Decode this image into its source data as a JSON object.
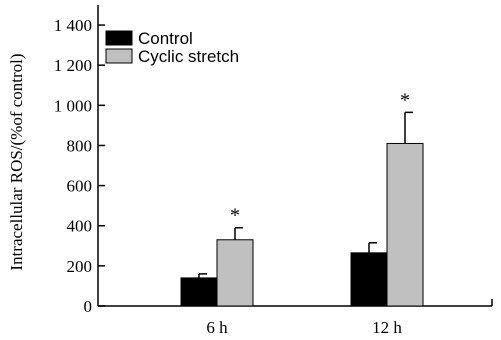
{
  "chart_data": {
    "type": "bar",
    "ylabel": "Intracellular ROS/(%of control)",
    "xlabel": "",
    "ylim": [
      0,
      1500
    ],
    "yticks": [
      0,
      200,
      400,
      600,
      800,
      1000,
      1200,
      1400
    ],
    "yticklabels": [
      "0",
      "200",
      "400",
      "600",
      "800",
      "1 000",
      "1 200",
      "1 400"
    ],
    "categories": [
      "6 h",
      "12 h"
    ],
    "series": [
      {
        "name": "Control",
        "color": "#000000",
        "values": [
          140,
          265
        ],
        "errors": [
          20,
          50
        ],
        "significance": [
          "",
          ""
        ]
      },
      {
        "name": "Cyclic stretch",
        "color": "#c0c0c0",
        "values": [
          330,
          810
        ],
        "errors": [
          60,
          155
        ],
        "significance": [
          "*",
          "*"
        ]
      }
    ],
    "legend": {
      "position": "top-left",
      "entries": [
        "Control",
        "Cyclic stretch"
      ]
    },
    "grid": false
  }
}
